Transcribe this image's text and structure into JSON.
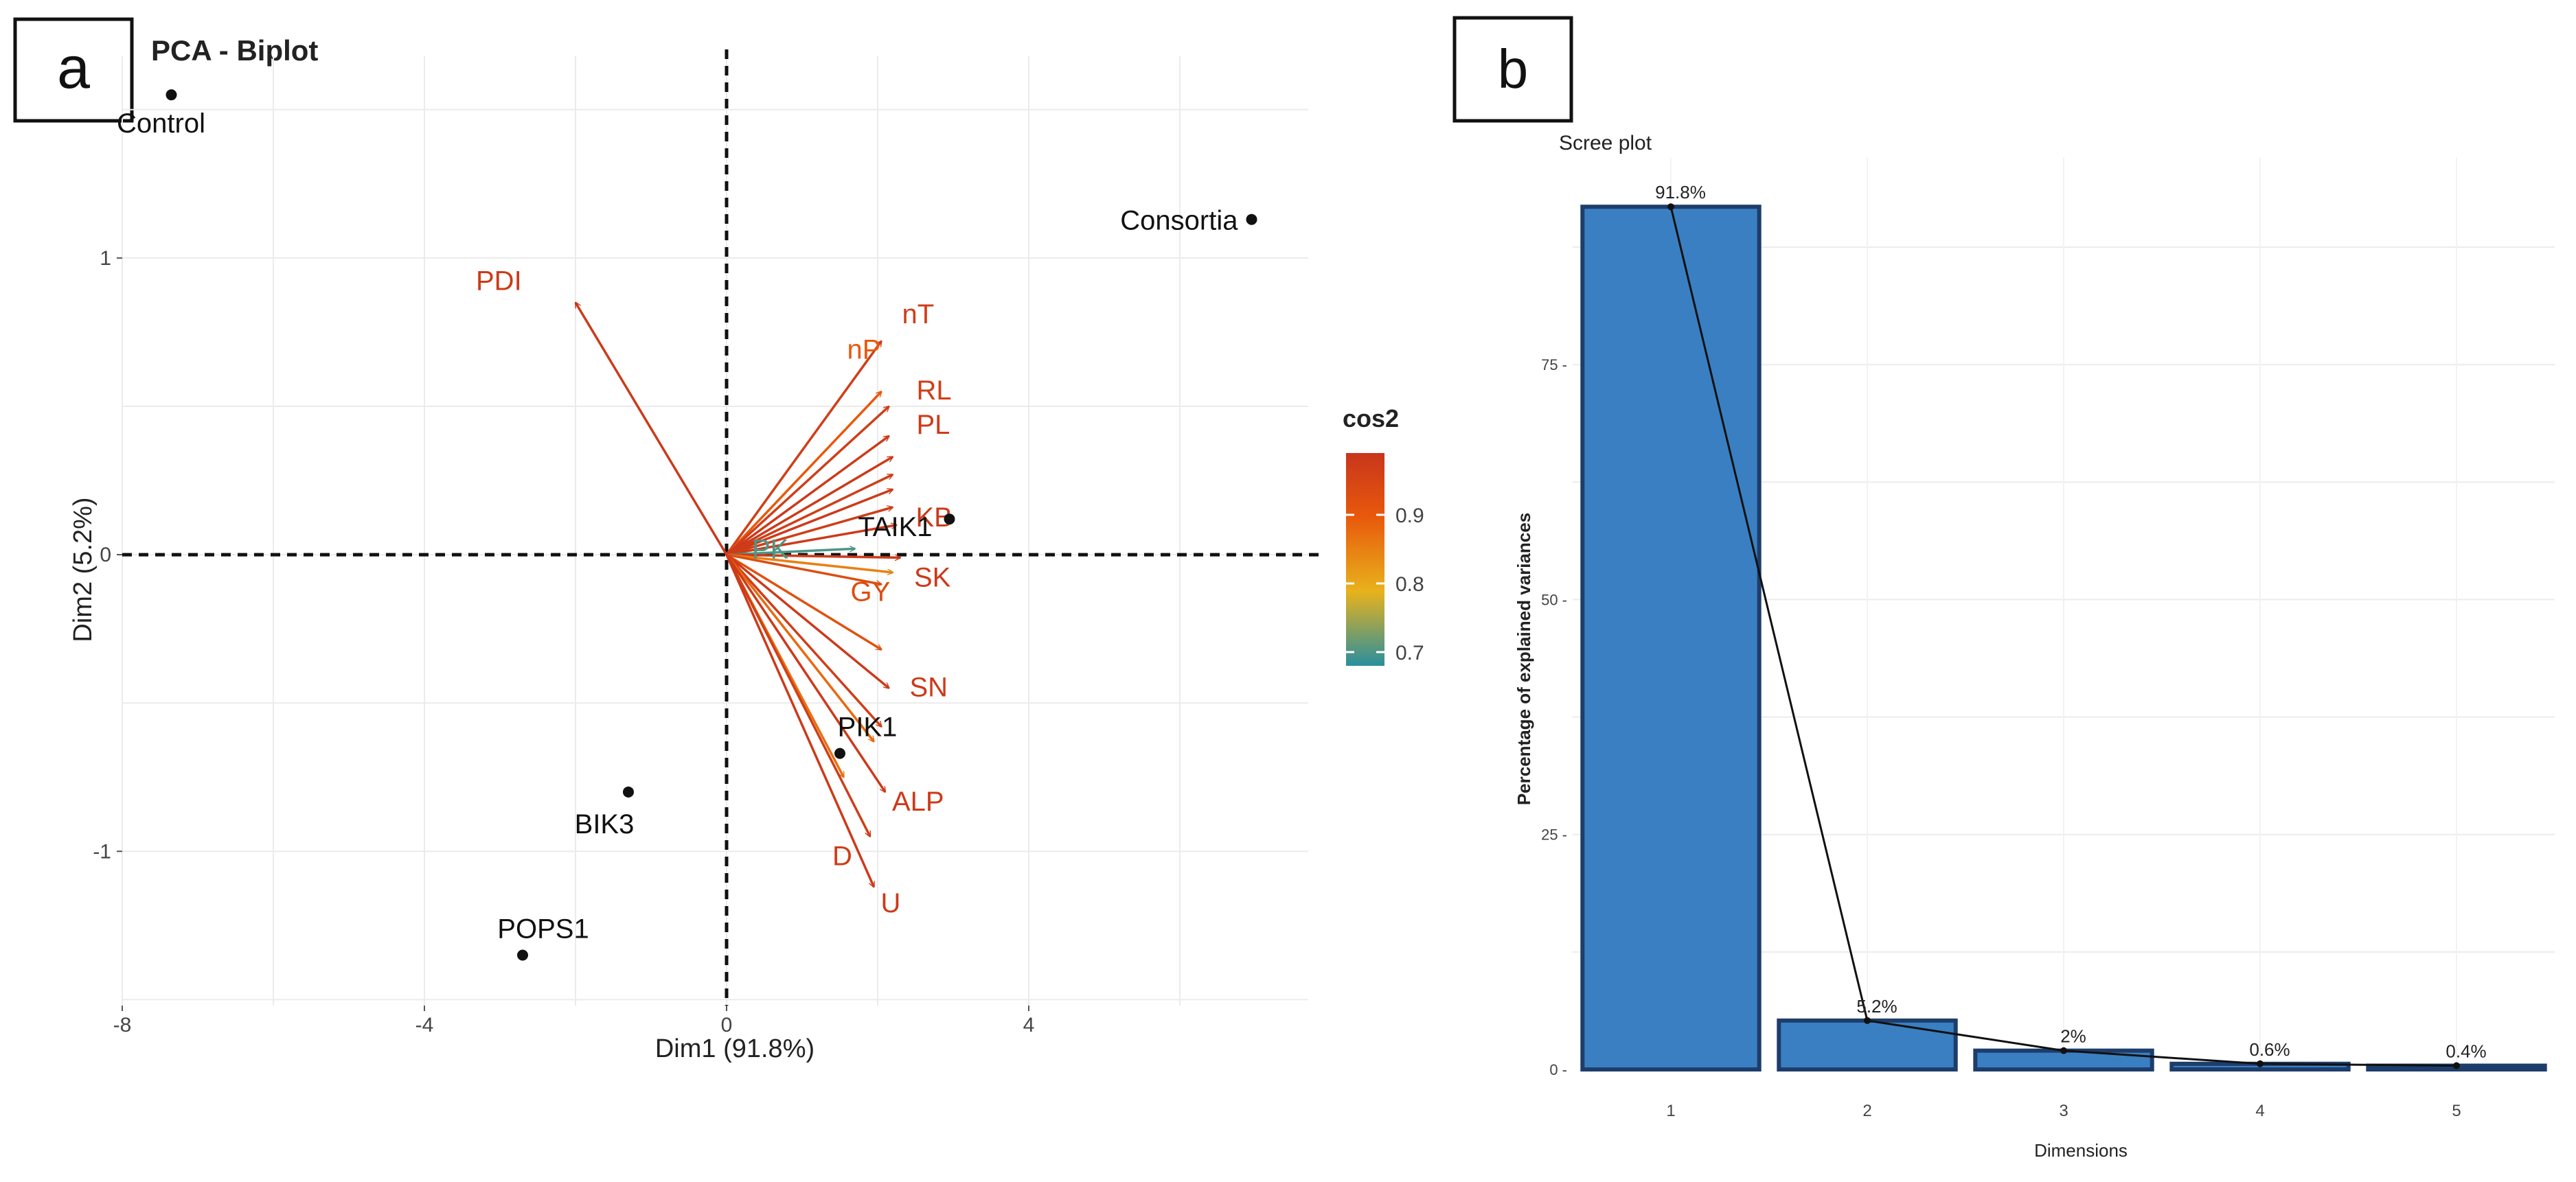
{
  "panels": {
    "a_label": "a",
    "b_label": "b"
  },
  "chart_data": [
    {
      "type": "scatter",
      "title": "PCA - Biplot",
      "xlabel": "Dim1 (91.8%)",
      "ylabel": "Dim2 (5.2%)",
      "xlim": [
        -8,
        7.7
      ],
      "ylim": [
        -1.52,
        1.68
      ],
      "xticks": [
        -8,
        -4,
        0,
        4
      ],
      "yticks": [
        -1,
        0,
        1
      ],
      "grid": true,
      "legend": {
        "title": "cos2",
        "position": "right",
        "ticks": [
          0.9,
          0.8,
          0.7
        ],
        "range": [
          0.68,
          0.99
        ],
        "colors": [
          "#2a8f9e",
          "#e8b21c",
          "#e8590c",
          "#c8361c"
        ]
      },
      "individuals": [
        {
          "name": "Control",
          "x": -7.35,
          "y": 1.55
        },
        {
          "name": "Consortia",
          "x": 6.95,
          "y": 1.13
        },
        {
          "name": "TAIK1",
          "x": 2.95,
          "y": 0.12
        },
        {
          "name": "PIK1",
          "x": 1.5,
          "y": -0.67
        },
        {
          "name": "BIK3",
          "x": -1.3,
          "y": -0.8
        },
        {
          "name": "POPS1",
          "x": -2.7,
          "y": -1.35
        }
      ],
      "variables": [
        {
          "name": "PDI",
          "x": -2.0,
          "y": 0.85,
          "cos2": 0.98
        },
        {
          "name": "nT",
          "x": 2.05,
          "y": 0.72,
          "cos2": 0.97
        },
        {
          "name": "nP",
          "x": 2.05,
          "y": 0.55,
          "cos2": 0.9
        },
        {
          "name": "RL",
          "x": 2.15,
          "y": 0.5,
          "cos2": 0.97
        },
        {
          "name": "PL",
          "x": 2.15,
          "y": 0.4,
          "cos2": 0.98
        },
        {
          "name": "",
          "x": 2.2,
          "y": 0.33,
          "cos2": 0.98
        },
        {
          "name": "",
          "x": 2.2,
          "y": 0.27,
          "cos2": 0.97
        },
        {
          "name": "",
          "x": 2.2,
          "y": 0.22,
          "cos2": 0.98
        },
        {
          "name": "",
          "x": 2.2,
          "y": 0.16,
          "cos2": 0.97
        },
        {
          "name": "KB",
          "x": 2.25,
          "y": 0.1,
          "cos2": 0.98
        },
        {
          "name": "PK",
          "x": 1.7,
          "y": 0.02,
          "cos2": 0.7
        },
        {
          "name": "SK",
          "x": 2.3,
          "y": -0.01,
          "cos2": 0.98
        },
        {
          "name": "",
          "x": 2.2,
          "y": -0.06,
          "cos2": 0.85
        },
        {
          "name": "GY",
          "x": 2.05,
          "y": -0.1,
          "cos2": 0.93
        },
        {
          "name": "",
          "x": 2.05,
          "y": -0.32,
          "cos2": 0.92
        },
        {
          "name": "SN",
          "x": 2.15,
          "y": -0.45,
          "cos2": 0.98
        },
        {
          "name": "",
          "x": 2.05,
          "y": -0.58,
          "cos2": 0.97
        },
        {
          "name": "",
          "x": 1.95,
          "y": -0.63,
          "cos2": 0.88
        },
        {
          "name": "",
          "x": 1.55,
          "y": -0.75,
          "cos2": 0.87
        },
        {
          "name": "ALP",
          "x": 2.1,
          "y": -0.8,
          "cos2": 0.98
        },
        {
          "name": "D",
          "x": 1.9,
          "y": -0.95,
          "cos2": 0.97
        },
        {
          "name": "U",
          "x": 1.95,
          "y": -1.12,
          "cos2": 0.98
        }
      ]
    },
    {
      "type": "bar",
      "title": "Scree plot",
      "xlabel": "Dimensions",
      "ylabel": "Percentage of explained variances",
      "categories": [
        "1",
        "2",
        "3",
        "4",
        "5"
      ],
      "values": [
        91.8,
        5.2,
        2,
        0.6,
        0.4
      ],
      "data_labels": [
        "91.8%",
        "5.2%",
        "2%",
        "0.6%",
        "0.4%"
      ],
      "ylim": [
        0,
        97
      ],
      "yticks": [
        0,
        25,
        50,
        75
      ],
      "ytick_labels": [
        "0 -",
        "25 -",
        "50 -",
        "75 -"
      ],
      "line_overlay": true,
      "grid": true,
      "colors": {
        "bar": "#3a7fc2",
        "bar_edge": "#1d3d6b",
        "line": "#111111"
      }
    }
  ]
}
